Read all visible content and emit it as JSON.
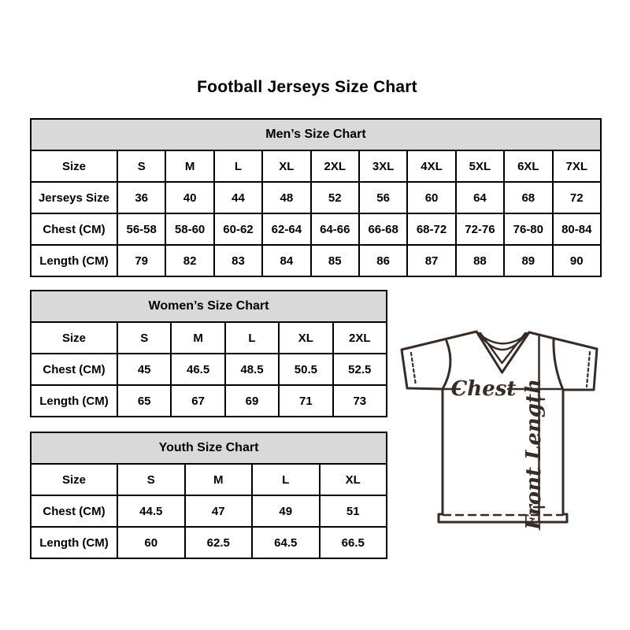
{
  "title": "Football Jerseys Size Chart",
  "tables": {
    "mens": {
      "header": "Men’s Size Chart",
      "rows": [
        [
          "Size",
          "S",
          "M",
          "L",
          "XL",
          "2XL",
          "3XL",
          "4XL",
          "5XL",
          "6XL",
          "7XL"
        ],
        [
          "Jerseys Size",
          "36",
          "40",
          "44",
          "48",
          "52",
          "56",
          "60",
          "64",
          "68",
          "72"
        ],
        [
          "Chest (CM)",
          "56-58",
          "58-60",
          "60-62",
          "62-64",
          "64-66",
          "66-68",
          "68-72",
          "72-76",
          "76-80",
          "80-84"
        ],
        [
          "Length (CM)",
          "79",
          "82",
          "83",
          "84",
          "85",
          "86",
          "87",
          "88",
          "89",
          "90"
        ]
      ]
    },
    "womens": {
      "header": "Women’s Size Chart",
      "rows": [
        [
          "Size",
          "S",
          "M",
          "L",
          "XL",
          "2XL"
        ],
        [
          "Chest (CM)",
          "45",
          "46.5",
          "48.5",
          "50.5",
          "52.5"
        ],
        [
          "Length (CM)",
          "65",
          "67",
          "69",
          "71",
          "73"
        ]
      ]
    },
    "youth": {
      "header": "Youth Size Chart",
      "rows": [
        [
          "Size",
          "S",
          "M",
          "L",
          "XL"
        ],
        [
          "Chest (CM)",
          "44.5",
          "47",
          "49",
          "51"
        ],
        [
          "Length (CM)",
          "60",
          "62.5",
          "64.5",
          "66.5"
        ]
      ]
    }
  },
  "diagram": {
    "chest_label": "Chest",
    "front_length_label": "Front Length"
  },
  "colors": {
    "table_border": "#000000",
    "table_header_bg": "#d9d9d9",
    "text": "#000000",
    "jersey_line": "#372c27",
    "background": "#ffffff"
  }
}
